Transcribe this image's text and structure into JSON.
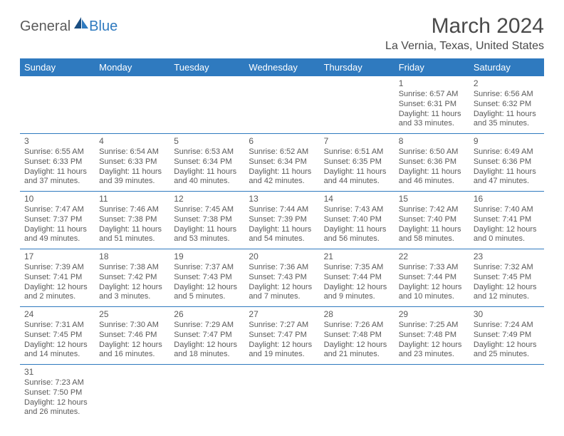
{
  "logo": {
    "text1": "General",
    "text2": "Blue"
  },
  "title": "March 2024",
  "location": "La Vernia, Texas, United States",
  "day_headers": [
    "Sunday",
    "Monday",
    "Tuesday",
    "Wednesday",
    "Thursday",
    "Friday",
    "Saturday"
  ],
  "colors": {
    "header_bg": "#2f7abf",
    "header_fg": "#ffffff",
    "border": "#2f7abf",
    "text": "#5a5a5a",
    "logo_blue": "#2f7abf"
  },
  "weeks": [
    [
      null,
      null,
      null,
      null,
      null,
      {
        "n": "1",
        "sr": "Sunrise: 6:57 AM",
        "ss": "Sunset: 6:31 PM",
        "d1": "Daylight: 11 hours",
        "d2": "and 33 minutes."
      },
      {
        "n": "2",
        "sr": "Sunrise: 6:56 AM",
        "ss": "Sunset: 6:32 PM",
        "d1": "Daylight: 11 hours",
        "d2": "and 35 minutes."
      }
    ],
    [
      {
        "n": "3",
        "sr": "Sunrise: 6:55 AM",
        "ss": "Sunset: 6:33 PM",
        "d1": "Daylight: 11 hours",
        "d2": "and 37 minutes."
      },
      {
        "n": "4",
        "sr": "Sunrise: 6:54 AM",
        "ss": "Sunset: 6:33 PM",
        "d1": "Daylight: 11 hours",
        "d2": "and 39 minutes."
      },
      {
        "n": "5",
        "sr": "Sunrise: 6:53 AM",
        "ss": "Sunset: 6:34 PM",
        "d1": "Daylight: 11 hours",
        "d2": "and 40 minutes."
      },
      {
        "n": "6",
        "sr": "Sunrise: 6:52 AM",
        "ss": "Sunset: 6:34 PM",
        "d1": "Daylight: 11 hours",
        "d2": "and 42 minutes."
      },
      {
        "n": "7",
        "sr": "Sunrise: 6:51 AM",
        "ss": "Sunset: 6:35 PM",
        "d1": "Daylight: 11 hours",
        "d2": "and 44 minutes."
      },
      {
        "n": "8",
        "sr": "Sunrise: 6:50 AM",
        "ss": "Sunset: 6:36 PM",
        "d1": "Daylight: 11 hours",
        "d2": "and 46 minutes."
      },
      {
        "n": "9",
        "sr": "Sunrise: 6:49 AM",
        "ss": "Sunset: 6:36 PM",
        "d1": "Daylight: 11 hours",
        "d2": "and 47 minutes."
      }
    ],
    [
      {
        "n": "10",
        "sr": "Sunrise: 7:47 AM",
        "ss": "Sunset: 7:37 PM",
        "d1": "Daylight: 11 hours",
        "d2": "and 49 minutes."
      },
      {
        "n": "11",
        "sr": "Sunrise: 7:46 AM",
        "ss": "Sunset: 7:38 PM",
        "d1": "Daylight: 11 hours",
        "d2": "and 51 minutes."
      },
      {
        "n": "12",
        "sr": "Sunrise: 7:45 AM",
        "ss": "Sunset: 7:38 PM",
        "d1": "Daylight: 11 hours",
        "d2": "and 53 minutes."
      },
      {
        "n": "13",
        "sr": "Sunrise: 7:44 AM",
        "ss": "Sunset: 7:39 PM",
        "d1": "Daylight: 11 hours",
        "d2": "and 54 minutes."
      },
      {
        "n": "14",
        "sr": "Sunrise: 7:43 AM",
        "ss": "Sunset: 7:40 PM",
        "d1": "Daylight: 11 hours",
        "d2": "and 56 minutes."
      },
      {
        "n": "15",
        "sr": "Sunrise: 7:42 AM",
        "ss": "Sunset: 7:40 PM",
        "d1": "Daylight: 11 hours",
        "d2": "and 58 minutes."
      },
      {
        "n": "16",
        "sr": "Sunrise: 7:40 AM",
        "ss": "Sunset: 7:41 PM",
        "d1": "Daylight: 12 hours",
        "d2": "and 0 minutes."
      }
    ],
    [
      {
        "n": "17",
        "sr": "Sunrise: 7:39 AM",
        "ss": "Sunset: 7:41 PM",
        "d1": "Daylight: 12 hours",
        "d2": "and 2 minutes."
      },
      {
        "n": "18",
        "sr": "Sunrise: 7:38 AM",
        "ss": "Sunset: 7:42 PM",
        "d1": "Daylight: 12 hours",
        "d2": "and 3 minutes."
      },
      {
        "n": "19",
        "sr": "Sunrise: 7:37 AM",
        "ss": "Sunset: 7:43 PM",
        "d1": "Daylight: 12 hours",
        "d2": "and 5 minutes."
      },
      {
        "n": "20",
        "sr": "Sunrise: 7:36 AM",
        "ss": "Sunset: 7:43 PM",
        "d1": "Daylight: 12 hours",
        "d2": "and 7 minutes."
      },
      {
        "n": "21",
        "sr": "Sunrise: 7:35 AM",
        "ss": "Sunset: 7:44 PM",
        "d1": "Daylight: 12 hours",
        "d2": "and 9 minutes."
      },
      {
        "n": "22",
        "sr": "Sunrise: 7:33 AM",
        "ss": "Sunset: 7:44 PM",
        "d1": "Daylight: 12 hours",
        "d2": "and 10 minutes."
      },
      {
        "n": "23",
        "sr": "Sunrise: 7:32 AM",
        "ss": "Sunset: 7:45 PM",
        "d1": "Daylight: 12 hours",
        "d2": "and 12 minutes."
      }
    ],
    [
      {
        "n": "24",
        "sr": "Sunrise: 7:31 AM",
        "ss": "Sunset: 7:45 PM",
        "d1": "Daylight: 12 hours",
        "d2": "and 14 minutes."
      },
      {
        "n": "25",
        "sr": "Sunrise: 7:30 AM",
        "ss": "Sunset: 7:46 PM",
        "d1": "Daylight: 12 hours",
        "d2": "and 16 minutes."
      },
      {
        "n": "26",
        "sr": "Sunrise: 7:29 AM",
        "ss": "Sunset: 7:47 PM",
        "d1": "Daylight: 12 hours",
        "d2": "and 18 minutes."
      },
      {
        "n": "27",
        "sr": "Sunrise: 7:27 AM",
        "ss": "Sunset: 7:47 PM",
        "d1": "Daylight: 12 hours",
        "d2": "and 19 minutes."
      },
      {
        "n": "28",
        "sr": "Sunrise: 7:26 AM",
        "ss": "Sunset: 7:48 PM",
        "d1": "Daylight: 12 hours",
        "d2": "and 21 minutes."
      },
      {
        "n": "29",
        "sr": "Sunrise: 7:25 AM",
        "ss": "Sunset: 7:48 PM",
        "d1": "Daylight: 12 hours",
        "d2": "and 23 minutes."
      },
      {
        "n": "30",
        "sr": "Sunrise: 7:24 AM",
        "ss": "Sunset: 7:49 PM",
        "d1": "Daylight: 12 hours",
        "d2": "and 25 minutes."
      }
    ],
    [
      {
        "n": "31",
        "sr": "Sunrise: 7:23 AM",
        "ss": "Sunset: 7:50 PM",
        "d1": "Daylight: 12 hours",
        "d2": "and 26 minutes."
      },
      null,
      null,
      null,
      null,
      null,
      null
    ]
  ]
}
